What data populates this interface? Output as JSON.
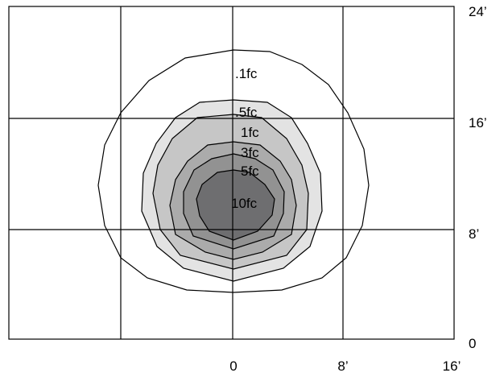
{
  "diagram": {
    "x_axis_labels": [
      "0",
      "8’",
      "16’"
    ],
    "y_axis_labels": [
      "0",
      "8’",
      "16’",
      "24’"
    ],
    "contours": [
      {
        "label": ".1fc",
        "fill": "#ffffff"
      },
      {
        "label": ".5fc",
        "fill": "#e3e3e3"
      },
      {
        "label": "1fc",
        "fill": "#c6c6c6"
      },
      {
        "label": "3fc",
        "fill": "#ababab"
      },
      {
        "label": "5fc",
        "fill": "#929292"
      },
      {
        "label": "10fc",
        "fill": "#6e6e70"
      }
    ],
    "line_color": "#000000"
  }
}
